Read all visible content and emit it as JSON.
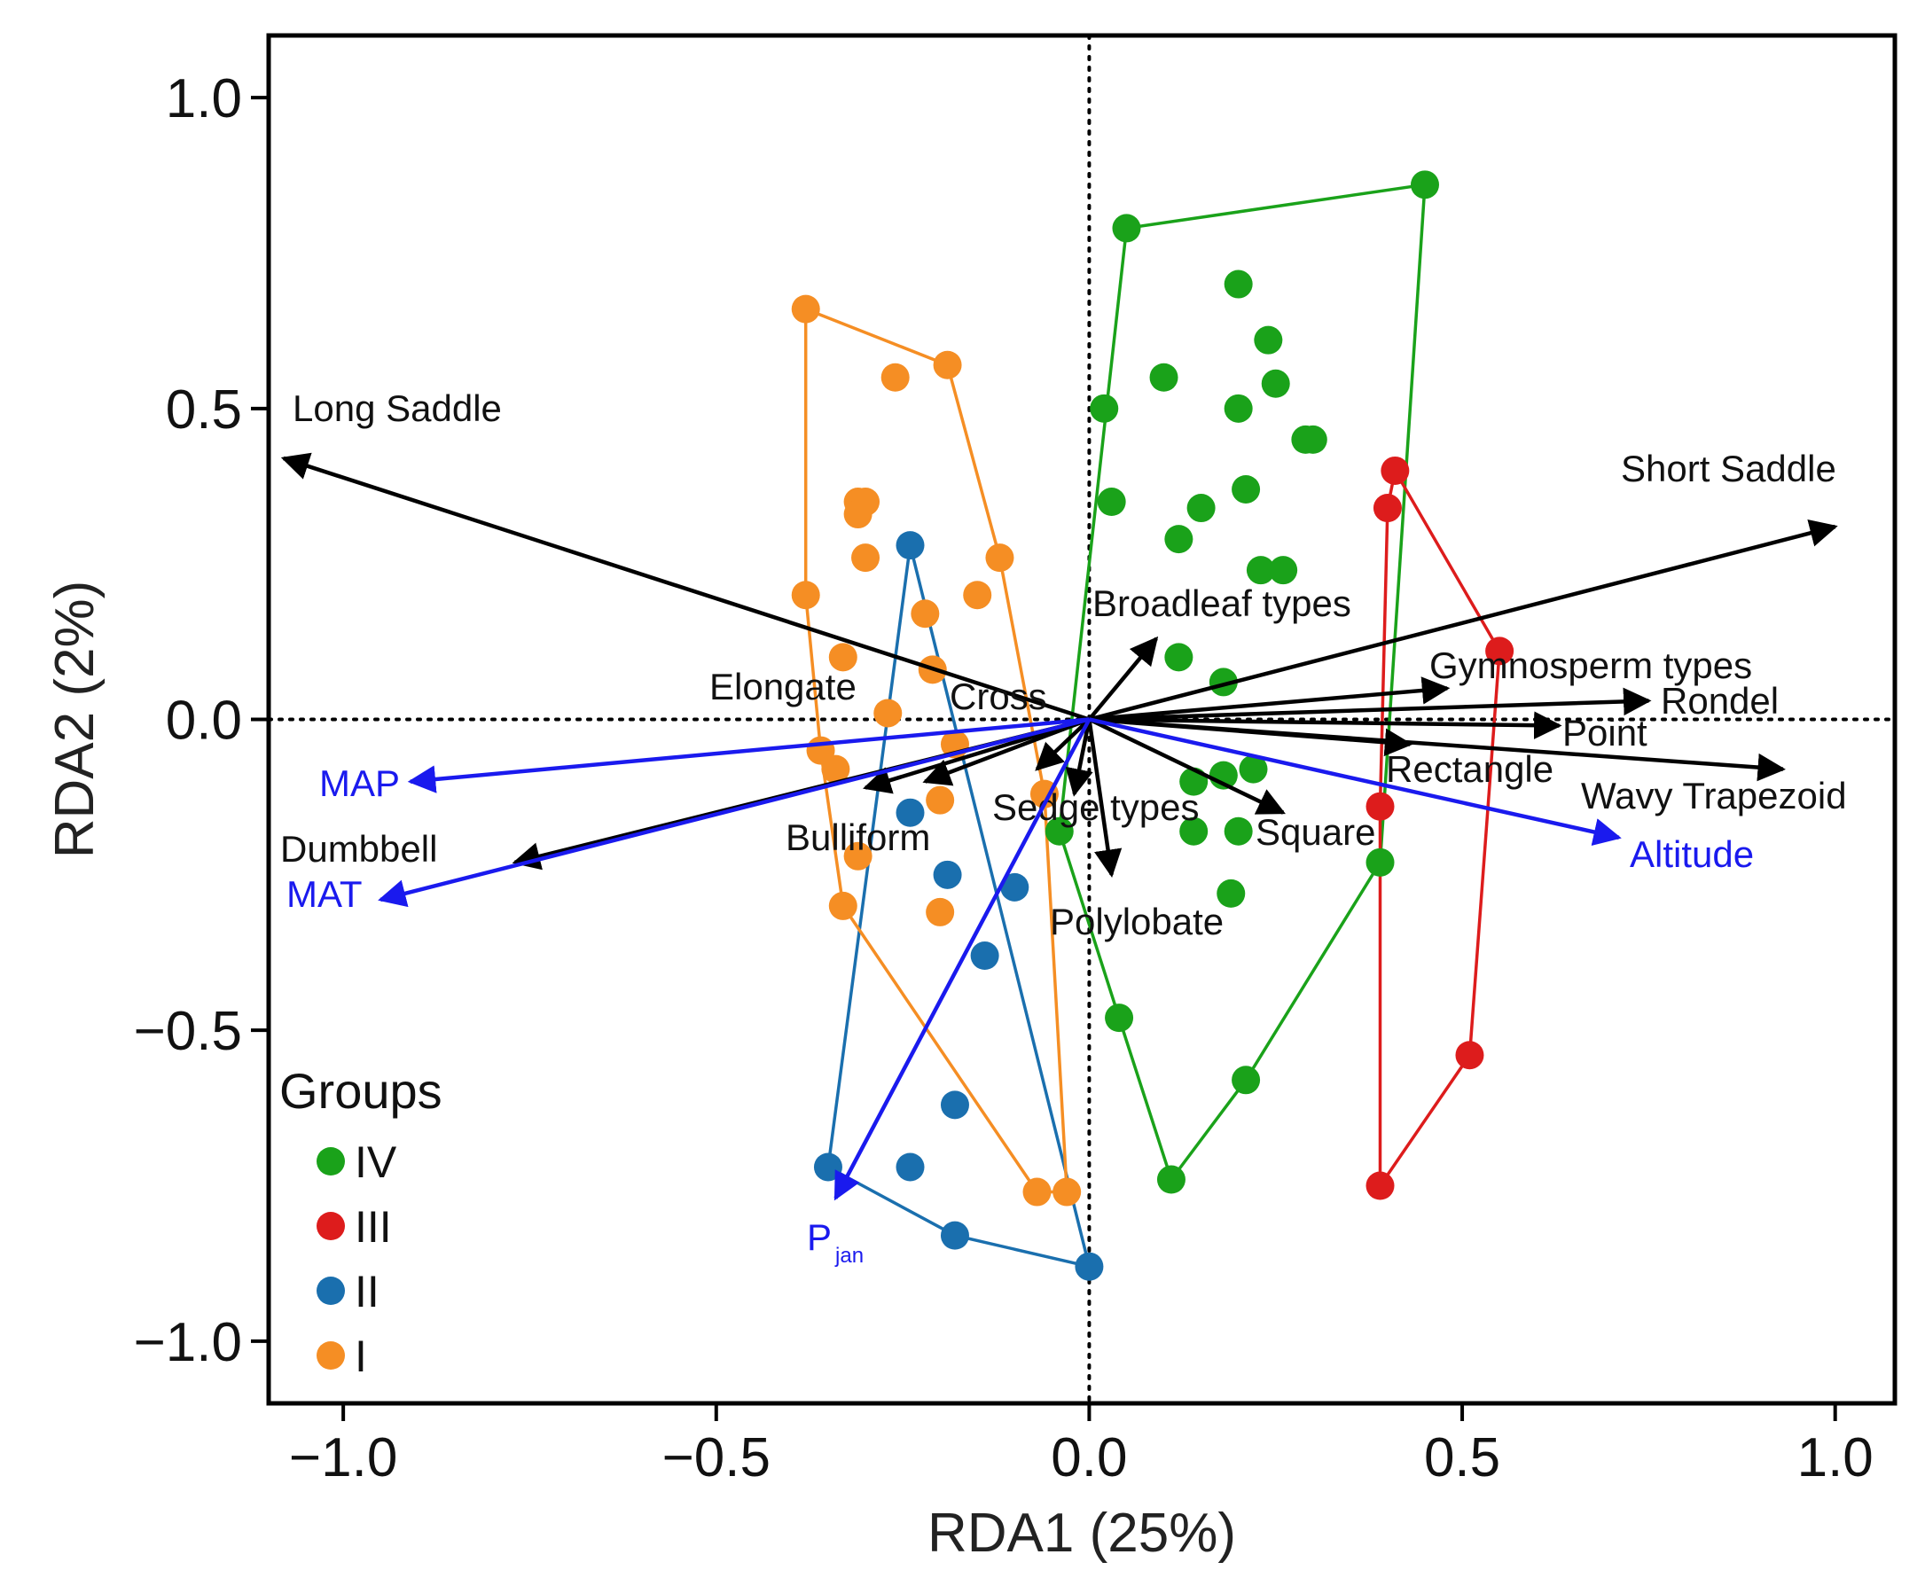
{
  "chart_data": {
    "type": "scatter",
    "xlabel": "RDA1 (25%)",
    "ylabel": "RDA2 (2%)",
    "xlim": [
      -1.1,
      1.08
    ],
    "ylim": [
      -1.1,
      1.1
    ],
    "xticks": [
      -1.0,
      -0.5,
      0.0,
      0.5,
      1.0
    ],
    "yticks": [
      -1.0,
      -0.5,
      0.0,
      0.5,
      1.0
    ],
    "xtick_labels": [
      "−1.0",
      "−0.5",
      "0.0",
      "0.5",
      "1.0"
    ],
    "ytick_labels": [
      "−1.0",
      "−0.5",
      "0.0",
      "0.5",
      "1.0"
    ],
    "reference_lines": {
      "x": 0,
      "y": 0,
      "style": "dotted"
    },
    "legend": {
      "title": "Groups",
      "position": "bottom-left",
      "entries": [
        {
          "label": "IV",
          "color": "#1aa21a"
        },
        {
          "label": "III",
          "color": "#dd1c1c"
        },
        {
          "label": "II",
          "color": "#1a6fae"
        },
        {
          "label": "I",
          "color": "#f58e24"
        }
      ]
    },
    "groups": [
      {
        "name": "IV",
        "color": "#1aa21a",
        "points": [
          [
            0.05,
            0.79
          ],
          [
            0.45,
            0.86
          ],
          [
            0.2,
            0.7
          ],
          [
            0.24,
            0.61
          ],
          [
            0.1,
            0.55
          ],
          [
            0.25,
            0.54
          ],
          [
            0.02,
            0.5
          ],
          [
            0.2,
            0.5
          ],
          [
            0.29,
            0.45
          ],
          [
            0.3,
            0.45
          ],
          [
            0.21,
            0.37
          ],
          [
            0.03,
            0.35
          ],
          [
            0.15,
            0.34
          ],
          [
            0.12,
            0.29
          ],
          [
            0.23,
            0.24
          ],
          [
            0.26,
            0.24
          ],
          [
            0.12,
            0.1
          ],
          [
            0.18,
            0.06
          ],
          [
            0.22,
            -0.08
          ],
          [
            0.18,
            -0.09
          ],
          [
            0.14,
            -0.1
          ],
          [
            0.14,
            -0.18
          ],
          [
            0.2,
            -0.18
          ],
          [
            -0.04,
            -0.18
          ],
          [
            0.39,
            -0.23
          ],
          [
            0.19,
            -0.28
          ],
          [
            0.04,
            -0.48
          ],
          [
            0.21,
            -0.58
          ],
          [
            0.11,
            -0.74
          ]
        ],
        "hull": [
          [
            0.05,
            0.79
          ],
          [
            0.45,
            0.86
          ],
          [
            0.39,
            -0.23
          ],
          [
            0.21,
            -0.58
          ],
          [
            0.11,
            -0.74
          ],
          [
            0.04,
            -0.48
          ],
          [
            -0.04,
            -0.18
          ]
        ]
      },
      {
        "name": "III",
        "color": "#dd1c1c",
        "points": [
          [
            0.41,
            0.4
          ],
          [
            0.4,
            0.34
          ],
          [
            0.55,
            0.11
          ],
          [
            0.39,
            -0.14
          ],
          [
            0.51,
            -0.54
          ],
          [
            0.39,
            -0.75
          ]
        ],
        "hull": [
          [
            0.41,
            0.4
          ],
          [
            0.55,
            0.11
          ],
          [
            0.51,
            -0.54
          ],
          [
            0.39,
            -0.75
          ],
          [
            0.39,
            -0.14
          ],
          [
            0.4,
            0.34
          ]
        ]
      },
      {
        "name": "II",
        "color": "#1a6fae",
        "points": [
          [
            -0.24,
            0.28
          ],
          [
            -0.24,
            -0.15
          ],
          [
            -0.19,
            -0.25
          ],
          [
            -0.1,
            -0.27
          ],
          [
            -0.14,
            -0.38
          ],
          [
            -0.18,
            -0.62
          ],
          [
            -0.24,
            -0.72
          ],
          [
            -0.35,
            -0.72
          ],
          [
            -0.18,
            -0.83
          ],
          [
            0.0,
            -0.88
          ]
        ],
        "hull": [
          [
            -0.24,
            0.28
          ],
          [
            0.0,
            -0.88
          ],
          [
            -0.18,
            -0.83
          ],
          [
            -0.35,
            -0.72
          ]
        ]
      },
      {
        "name": "I",
        "color": "#f58e24",
        "points": [
          [
            -0.38,
            0.66
          ],
          [
            -0.19,
            0.57
          ],
          [
            -0.26,
            0.55
          ],
          [
            -0.31,
            0.35
          ],
          [
            -0.3,
            0.35
          ],
          [
            -0.31,
            0.33
          ],
          [
            -0.3,
            0.26
          ],
          [
            -0.12,
            0.26
          ],
          [
            -0.38,
            0.2
          ],
          [
            -0.15,
            0.2
          ],
          [
            -0.22,
            0.17
          ],
          [
            -0.33,
            0.1
          ],
          [
            -0.21,
            0.08
          ],
          [
            -0.27,
            0.01
          ],
          [
            -0.18,
            -0.04
          ],
          [
            -0.36,
            -0.05
          ],
          [
            -0.34,
            -0.08
          ],
          [
            -0.06,
            -0.12
          ],
          [
            -0.2,
            -0.13
          ],
          [
            -0.31,
            -0.22
          ],
          [
            -0.33,
            -0.3
          ],
          [
            -0.2,
            -0.31
          ],
          [
            -0.07,
            -0.76
          ],
          [
            -0.03,
            -0.76
          ]
        ],
        "hull": [
          [
            -0.38,
            0.66
          ],
          [
            -0.19,
            0.57
          ],
          [
            -0.12,
            0.26
          ],
          [
            -0.06,
            -0.12
          ],
          [
            -0.03,
            -0.76
          ],
          [
            -0.07,
            -0.76
          ],
          [
            -0.33,
            -0.3
          ],
          [
            -0.36,
            -0.05
          ],
          [
            -0.38,
            0.2
          ]
        ]
      }
    ],
    "species_arrows": [
      {
        "label": "Long Saddle",
        "x": -1.08,
        "y": 0.42
      },
      {
        "label": "Short Saddle",
        "x": 1.0,
        "y": 0.31
      },
      {
        "label": "Broadleaf types",
        "x": 0.09,
        "y": 0.13
      },
      {
        "label": "Gymnosperm types",
        "x": 0.48,
        "y": 0.05
      },
      {
        "label": "Rondel",
        "x": 0.75,
        "y": 0.03
      },
      {
        "label": "Point",
        "x": 0.63,
        "y": -0.01
      },
      {
        "label": "Rectangle",
        "x": 0.43,
        "y": -0.04
      },
      {
        "label": "Wavy Trapezoid",
        "x": 0.93,
        "y": -0.08
      },
      {
        "label": "Square",
        "x": 0.26,
        "y": -0.15
      },
      {
        "label": "Polylobate",
        "x": 0.03,
        "y": -0.25
      },
      {
        "label": "Sedge types",
        "x": -0.02,
        "y": -0.12
      },
      {
        "label": "Cross",
        "x": -0.07,
        "y": -0.08
      },
      {
        "label": "Elongate",
        "x": -0.22,
        "y": -0.1
      },
      {
        "label": "Bulliform",
        "x": -0.3,
        "y": -0.11
      },
      {
        "label": "Dumbbell",
        "x": -0.77,
        "y": -0.23
      }
    ],
    "env_arrows": [
      {
        "label": "MAP",
        "x": -0.91,
        "y": -0.1
      },
      {
        "label": "MAT",
        "x": -0.95,
        "y": -0.29
      },
      {
        "label": "Altitude",
        "x": 0.71,
        "y": -0.19
      },
      {
        "label": "P",
        "subscript": "jan",
        "x": -0.34,
        "y": -0.77
      }
    ]
  }
}
